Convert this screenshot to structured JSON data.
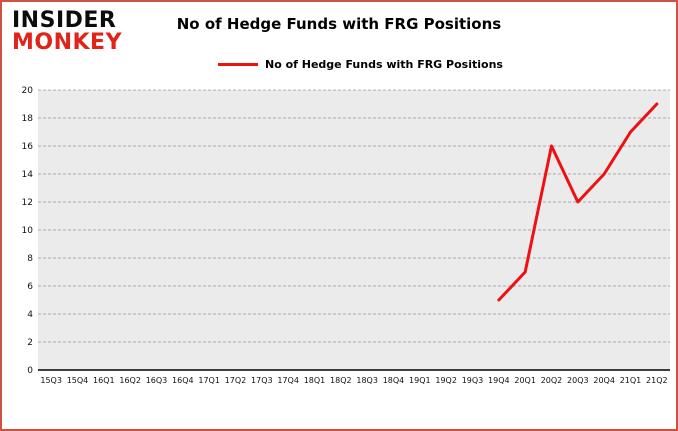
{
  "logo": {
    "line1": "INSIDER",
    "line2": "MONKEY"
  },
  "header": {
    "title": "No of Hedge Funds with FRG Positions"
  },
  "legend": {
    "label": "No of Hedge Funds with FRG Positions",
    "color": "#ee1111"
  },
  "colors": {
    "line": "#ee1111",
    "logo_red": "#e02419",
    "border": "#cd5241",
    "plot_bg": "#ebebeb",
    "grid": "#000000",
    "text": "#111111"
  },
  "chart_data": {
    "type": "line",
    "title": "No of Hedge Funds with FRG Positions",
    "xlabel": "",
    "ylabel": "",
    "ylim": [
      0,
      20
    ],
    "ytick_step": 2,
    "grid": "horizontal-dashed",
    "legend_position": "top",
    "categories": [
      "15Q3",
      "15Q4",
      "16Q1",
      "16Q2",
      "16Q3",
      "16Q4",
      "17Q1",
      "17Q2",
      "17Q3",
      "17Q4",
      "18Q1",
      "18Q2",
      "18Q3",
      "18Q4",
      "19Q1",
      "19Q2",
      "19Q3",
      "19Q4",
      "20Q1",
      "20Q2",
      "20Q3",
      "20Q4",
      "21Q1",
      "21Q2"
    ],
    "series": [
      {
        "name": "No of Hedge Funds with FRG Positions",
        "color": "#ee1111",
        "values": [
          null,
          null,
          null,
          null,
          null,
          null,
          null,
          null,
          null,
          null,
          null,
          null,
          null,
          null,
          null,
          null,
          null,
          5,
          7,
          16,
          12,
          14,
          17,
          19
        ]
      }
    ]
  }
}
